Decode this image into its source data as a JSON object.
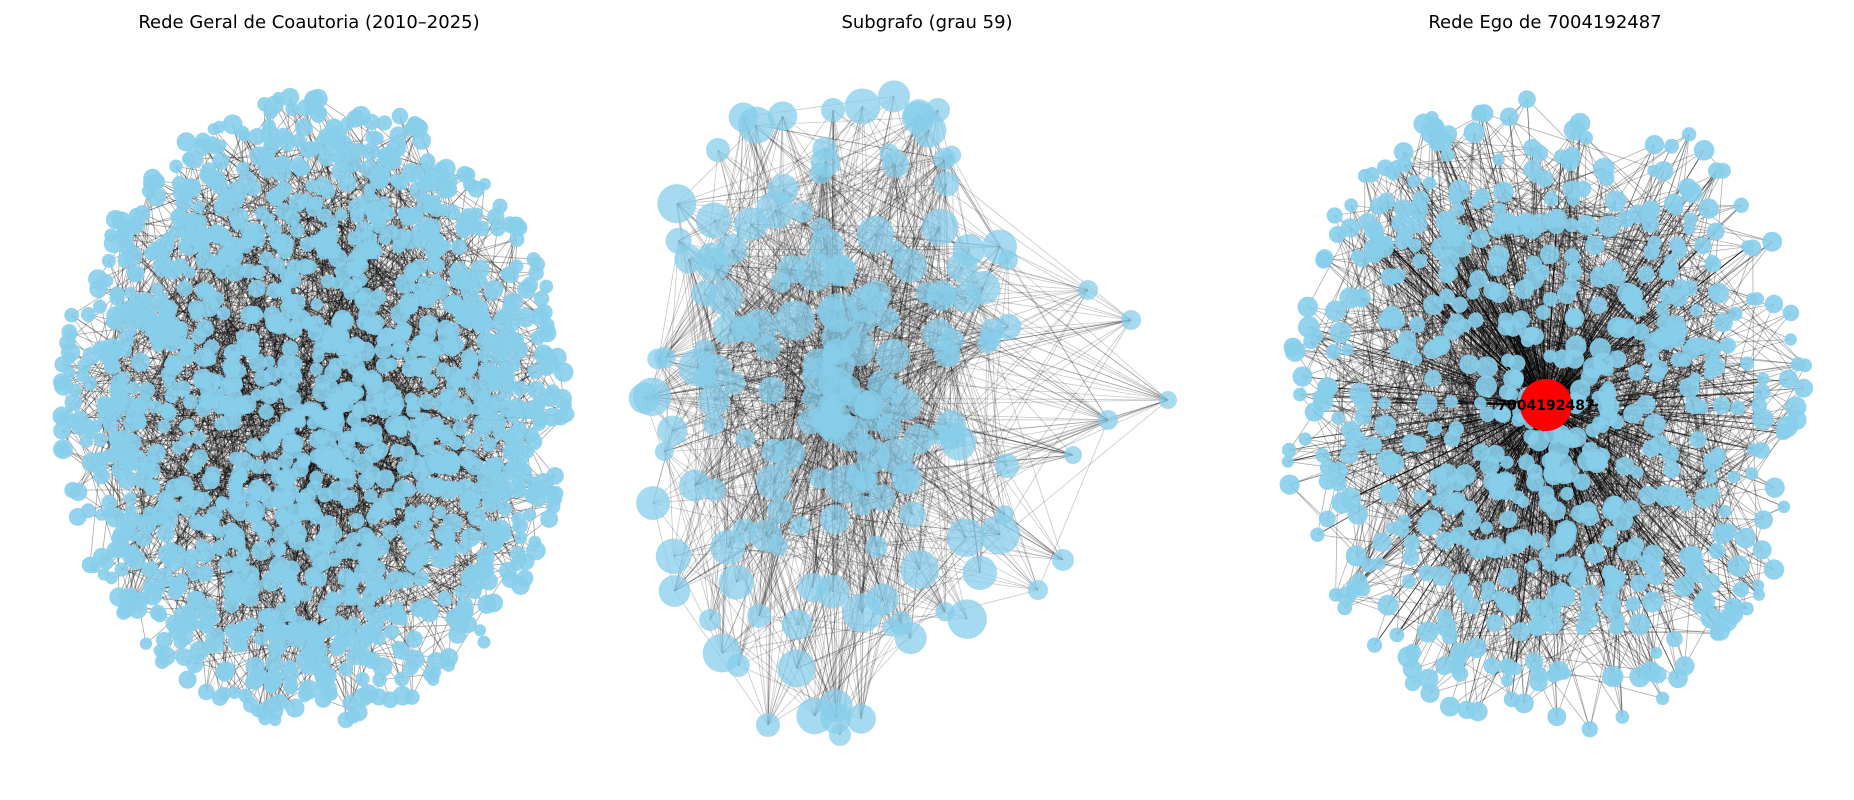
{
  "figure": {
    "node_color": "#87CEEB",
    "edge_color": "#000000",
    "highlight_color": "#FF0000"
  },
  "panels": [
    {
      "title": "Rede Geral de Coautoria (2010–2025)"
    },
    {
      "title": "Subgrafo (grau 59)"
    },
    {
      "title": "Rede Ego de 7004192487",
      "center_node_label": "7004192487"
    }
  ]
}
